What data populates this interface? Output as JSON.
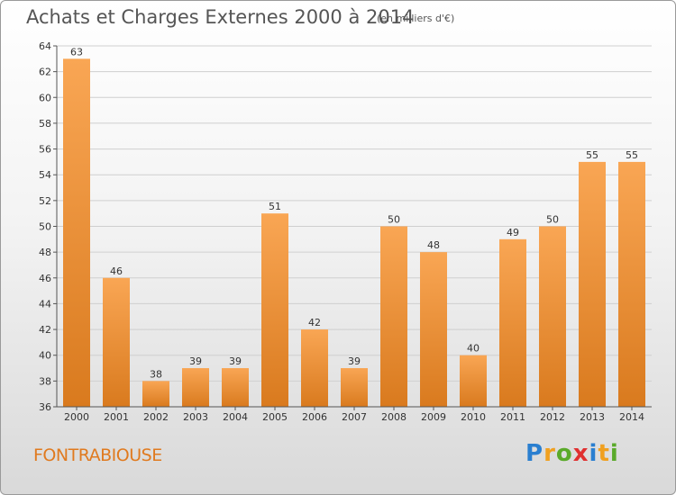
{
  "header": {
    "title": "Achats et Charges Externes 2000 à 2014",
    "subtitle": "(en milliers d'€)"
  },
  "footer": {
    "city": "FONTRABIOUSE",
    "logo": "Proxiti"
  },
  "colors": {
    "bar_light": "#f9a654",
    "bar_dark": "#d97a1e",
    "city_text": "#e07a1f",
    "logo_p": "#2a7fd0",
    "logo_r": "#f0a020",
    "logo_o": "#5aaa2a",
    "logo_x": "#e03030",
    "logo_i": "#2a7fd0",
    "logo_t": "#f0a020",
    "logo_i2": "#5aaa2a"
  },
  "chart_data": {
    "type": "bar",
    "title": "Achats et Charges Externes 2000 à 2014",
    "subtitle": "(en milliers d'€)",
    "categories": [
      "2000",
      "2001",
      "2002",
      "2003",
      "2004",
      "2005",
      "2006",
      "2007",
      "2008",
      "2009",
      "2010",
      "2011",
      "2012",
      "2013",
      "2014"
    ],
    "values": [
      63,
      46,
      38,
      39,
      39,
      51,
      42,
      39,
      50,
      48,
      40,
      49,
      50,
      55,
      55
    ],
    "ylim": [
      36,
      64
    ],
    "yticks": [
      36,
      38,
      40,
      42,
      44,
      46,
      48,
      50,
      52,
      54,
      56,
      58,
      60,
      62,
      64
    ],
    "grid": true,
    "data_labels": true
  }
}
